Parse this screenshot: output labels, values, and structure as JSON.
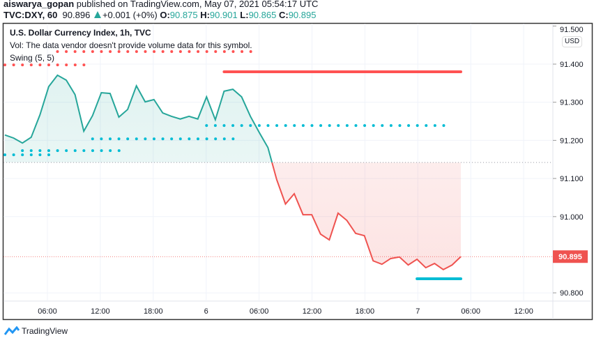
{
  "header": {
    "author": "aiswarya_gopan",
    "published_text": "published on TradingView.com, May 07, 2021 05:54:17 UTC",
    "symbol": "TVC:DXY, 60",
    "last": "90.896",
    "change": "+0.001 (+0%)",
    "o_label": "O:",
    "o": "90.875",
    "h_label": "H:",
    "h": "90.901",
    "l_label": "L:",
    "l": "90.865",
    "c_label": "C:",
    "c": "90.895"
  },
  "legend": {
    "title": "U.S. Dollar Currency Index, 1h, TVC",
    "vol": "Vol: The data vendor doesn't provide volume data for this symbol.",
    "indicator": "Swing (5, 5)"
  },
  "currency": "USD",
  "last_price_label": "90.895",
  "colors": {
    "up": "#26a69a",
    "down": "#ef5350",
    "swing_high": "#ff5252",
    "swing_low": "#00bcd4"
  },
  "chart_data": {
    "type": "line",
    "interval": "1h",
    "baseline": 91.142,
    "y_ticks": [
      "91.500",
      "91.400",
      "91.300",
      "91.200",
      "91.100",
      "91.000",
      "90.800"
    ],
    "x_ticks": [
      "06:00",
      "12:00",
      "18:00",
      "6",
      "06:00",
      "12:00",
      "18:00",
      "7",
      "06:00",
      "12:00"
    ],
    "ylim": [
      90.75,
      91.5
    ],
    "values": [
      91.214,
      91.206,
      91.193,
      91.208,
      91.267,
      91.341,
      91.371,
      91.358,
      91.32,
      91.224,
      91.265,
      91.325,
      91.323,
      91.261,
      91.281,
      91.343,
      91.301,
      91.307,
      91.272,
      91.263,
      91.256,
      91.263,
      91.256,
      91.314,
      91.254,
      91.329,
      91.334,
      91.314,
      91.263,
      91.221,
      91.181,
      91.097,
      91.033,
      91.06,
      91.005,
      91.005,
      90.954,
      90.939,
      91.009,
      90.99,
      90.956,
      90.95,
      90.884,
      90.875,
      90.89,
      90.894,
      90.873,
      90.888,
      90.866,
      90.877,
      90.861,
      90.873,
      90.895
    ],
    "swing_levels": [
      {
        "price": 91.433,
        "from": 6,
        "to": 29,
        "style": "dotted",
        "kind": "high"
      },
      {
        "price": 91.398,
        "from": 0,
        "to": 10,
        "style": "dotted",
        "kind": "high"
      },
      {
        "price": 91.38,
        "from": 25,
        "to": 52,
        "style": "solid",
        "kind": "high"
      },
      {
        "price": 91.239,
        "from": 23,
        "to": 51,
        "style": "dotted",
        "kind": "low"
      },
      {
        "price": 91.204,
        "from": 10,
        "to": 27,
        "style": "dotted",
        "kind": "low"
      },
      {
        "price": 91.173,
        "from": 2,
        "to": 14,
        "style": "dotted",
        "kind": "low"
      },
      {
        "price": 91.162,
        "from": 0,
        "to": 6,
        "style": "dotted",
        "kind": "low"
      },
      {
        "price": 90.837,
        "from": 47,
        "to": 52,
        "style": "solid",
        "kind": "low"
      }
    ]
  },
  "footer": {
    "brand": "TradingView"
  }
}
